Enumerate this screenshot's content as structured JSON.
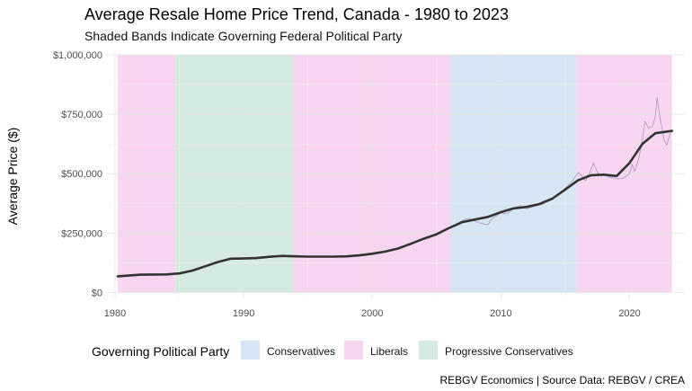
{
  "chart_data": {
    "type": "line",
    "title": "Average Resale Home Price Trend, Canada - 1980 to 2023",
    "subtitle": "Shaded Bands Indicate Governing Federal Political Party",
    "xlabel": "",
    "ylabel": "Average Price ($)",
    "caption": "REBGV Economics | Source Data: REBGV / CREA",
    "xlim": [
      1979.3,
      1980.0,
      2024.3
    ],
    "ylim": [
      -25000,
      1000000
    ],
    "x_ticks": [
      1980,
      1990,
      2000,
      2010,
      2020
    ],
    "x_tick_labels": [
      "1980",
      "1990",
      "2000",
      "2010",
      "2020"
    ],
    "y_ticks": [
      0,
      250000,
      500000,
      750000,
      1000000
    ],
    "y_tick_labels": [
      "$0",
      "$250,000",
      "$500,000",
      "$750,000",
      "$1,000,000"
    ],
    "grid": true,
    "legend_placement": "bottom",
    "legend_title": "Governing Political Party",
    "legend": [
      {
        "key": "con",
        "label": "Conservatives",
        "color": "#d6e6f4"
      },
      {
        "key": "lib",
        "label": "Liberals",
        "color": "#f8d6f1"
      },
      {
        "key": "pc",
        "label": "Progressive Conservatives",
        "color": "#d5ebe1"
      }
    ],
    "bands": [
      {
        "party": "lib",
        "start": 1980.2,
        "end": 1984.7
      },
      {
        "party": "pc",
        "start": 1984.7,
        "end": 1993.9
      },
      {
        "party": "lib",
        "start": 1993.9,
        "end": 2006.1
      },
      {
        "party": "con",
        "start": 2006.1,
        "end": 2015.9
      },
      {
        "party": "lib",
        "start": 2015.9,
        "end": 2023.3
      }
    ],
    "series": [
      {
        "role": "trend",
        "color": "#333333",
        "x": [
          1980.2,
          1982,
          1984,
          1985,
          1986,
          1987,
          1988,
          1989,
          1990,
          1991,
          1992,
          1993,
          1994,
          1995,
          1996,
          1997,
          1998,
          1999,
          2000,
          2001,
          2002,
          2003,
          2004,
          2005,
          2006,
          2007,
          2008,
          2009,
          2010,
          2011,
          2012,
          2013,
          2014,
          2015,
          2016,
          2017,
          2018,
          2019,
          2020,
          2021,
          2022,
          2023.3
        ],
        "values": [
          68000,
          75000,
          76000,
          80000,
          92000,
          110000,
          128000,
          142000,
          143000,
          145000,
          150000,
          154000,
          152000,
          151000,
          151000,
          151000,
          152000,
          156000,
          163000,
          172000,
          185000,
          205000,
          226000,
          245000,
          272000,
          296000,
          307000,
          318000,
          338000,
          354000,
          360000,
          372000,
          395000,
          433000,
          472000,
          493000,
          496000,
          490000,
          545000,
          625000,
          670000,
          680000
        ]
      },
      {
        "role": "monthly",
        "color": "#9c8ab5",
        "x": [
          2006.5,
          2007,
          2007.5,
          2008,
          2008.5,
          2009,
          2009.3,
          2009.7,
          2010,
          2010.5,
          2011,
          2011.5,
          2012,
          2012.5,
          2013,
          2013.5,
          2014,
          2014.5,
          2015,
          2015.5,
          2016,
          2016.3,
          2016.6,
          2017,
          2017.2,
          2017.5,
          2017.8,
          2018,
          2018.5,
          2019,
          2019.5,
          2020,
          2020.2,
          2020.4,
          2020.7,
          2021,
          2021.2,
          2021.5,
          2021.8,
          2022,
          2022.15,
          2022.3,
          2022.5,
          2022.7,
          2022.9,
          2023.1,
          2023.3
        ],
        "values": [
          285000,
          302000,
          312000,
          300000,
          290000,
          285000,
          310000,
          325000,
          335000,
          330000,
          355000,
          365000,
          352000,
          360000,
          368000,
          380000,
          392000,
          410000,
          440000,
          465000,
          505000,
          490000,
          470000,
          515000,
          545000,
          505000,
          490000,
          495000,
          485000,
          478000,
          480000,
          500000,
          540000,
          510000,
          560000,
          640000,
          720000,
          690000,
          700000,
          740000,
          820000,
          760000,
          700000,
          640000,
          620000,
          660000,
          680000
        ]
      }
    ]
  }
}
